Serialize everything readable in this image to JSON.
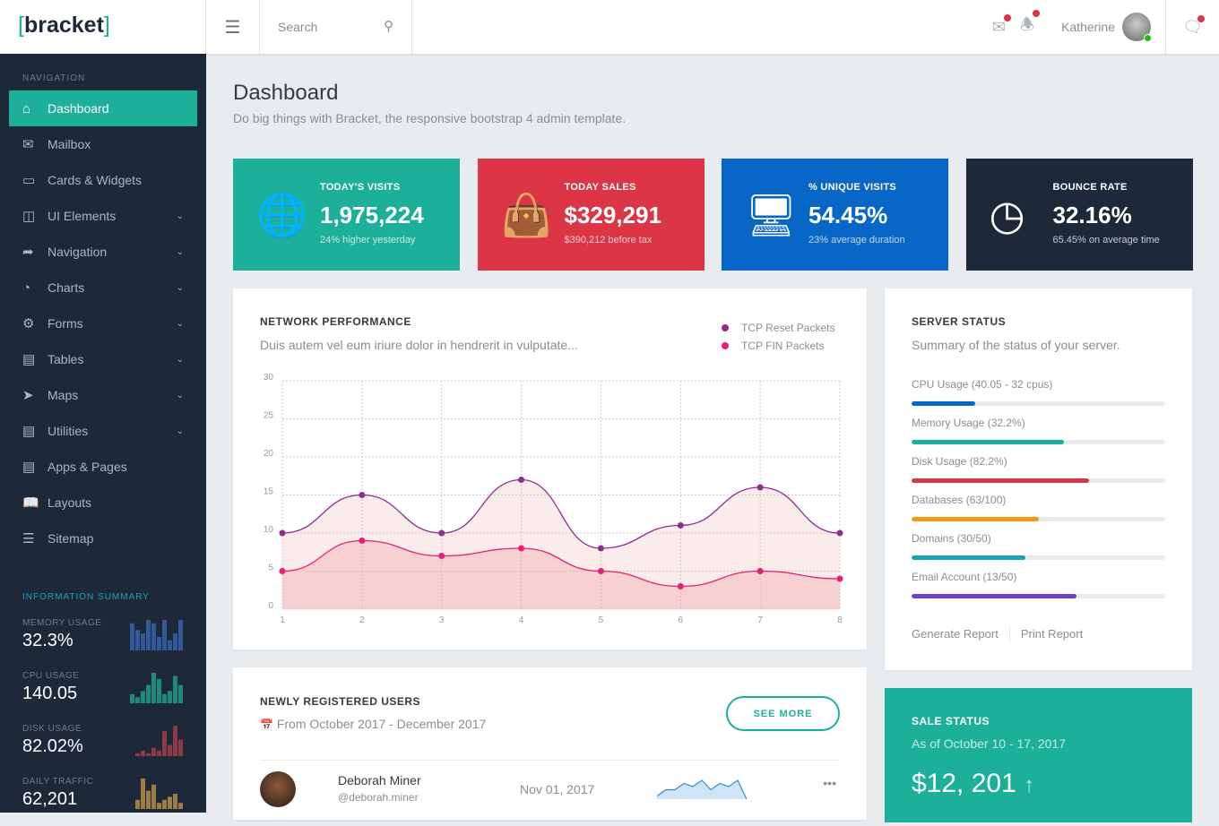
{
  "header": {
    "logo": "bracket",
    "search_placeholder": "Search",
    "user_name": "Katherine"
  },
  "sidebar": {
    "section_title": "NAVIGATION",
    "items": [
      {
        "label": "Dashboard",
        "icon": "home-icon"
      },
      {
        "label": "Mailbox",
        "icon": "mail-icon"
      },
      {
        "label": "Cards & Widgets",
        "icon": "cards-icon"
      },
      {
        "label": "UI Elements",
        "icon": "ui-icon",
        "chevron": true
      },
      {
        "label": "Navigation",
        "icon": "share-icon",
        "chevron": true
      },
      {
        "label": "Charts",
        "icon": "pie-chart-icon",
        "chevron": true
      },
      {
        "label": "Forms",
        "icon": "gear-icon",
        "chevron": true
      },
      {
        "label": "Tables",
        "icon": "table-icon",
        "chevron": true
      },
      {
        "label": "Maps",
        "icon": "compass-icon",
        "chevron": true
      },
      {
        "label": "Utilities",
        "icon": "briefcase-icon",
        "chevron": true
      },
      {
        "label": "Apps & Pages",
        "icon": "pages-icon"
      },
      {
        "label": "Layouts",
        "icon": "book-icon"
      },
      {
        "label": "Sitemap",
        "icon": "list-icon"
      }
    ],
    "info_title": "INFORMATION SUMMARY",
    "summary": [
      {
        "label": "MEMORY USAGE",
        "value": "32.3%",
        "color": "#325a98",
        "bars": [
          8,
          6,
          5,
          9,
          8,
          4,
          9,
          3,
          5,
          9
        ]
      },
      {
        "label": "CPU USAGE",
        "value": "140.05",
        "color": "#1f8a7a",
        "bars": [
          3,
          2,
          4,
          6,
          10,
          8,
          3,
          4,
          9,
          6
        ]
      },
      {
        "label": "DISK USAGE",
        "value": "82.02%",
        "color": "#8e3a44",
        "bars": [
          1,
          2,
          1,
          3,
          2,
          9,
          4,
          11,
          6
        ]
      },
      {
        "label": "DAILY TRAFFIC",
        "value": "62,201",
        "color": "#a07c45",
        "bars": [
          3,
          10,
          6,
          8,
          2,
          3,
          4,
          5,
          2
        ]
      }
    ]
  },
  "page": {
    "title": "Dashboard",
    "subtitle": "Do big things with Bracket, the responsive bootstrap 4 admin template."
  },
  "stats": [
    {
      "title": "TODAY'S VISITS",
      "value": "1,975,224",
      "sub": "24% higher yesterday",
      "color": "#1caf9a",
      "icon": "globe-icon"
    },
    {
      "title": "TODAY SALES",
      "value": "$329,291",
      "sub": "$390,212 before tax",
      "color": "#dc3545",
      "icon": "shopping-bag-icon"
    },
    {
      "title": "% UNIQUE VISITS",
      "value": "54.45%",
      "sub": "23% average duration",
      "color": "#0866c6",
      "icon": "monitor-icon"
    },
    {
      "title": "BOUNCE RATE",
      "value": "32.16%",
      "sub": "65.45% on average time",
      "color": "#1d2939",
      "icon": "clock-icon"
    }
  ],
  "network": {
    "title": "NETWORK PERFORMANCE",
    "subtitle": "Duis autem vel eum iriure dolor in hendrerit in vulputate..."
  },
  "chart_data": {
    "type": "area",
    "x": [
      1,
      2,
      3,
      4,
      5,
      6,
      7,
      8
    ],
    "ylim": [
      0,
      30
    ],
    "yticks": [
      0,
      5,
      10,
      15,
      20,
      25,
      30
    ],
    "grid": true,
    "legend": "top-right",
    "series": [
      {
        "name": "TCP Reset Packets",
        "color": "#8e2c91",
        "values": [
          10,
          15,
          10,
          17,
          8,
          11,
          16,
          10
        ]
      },
      {
        "name": "TCP FIN Packets",
        "color": "#e91e75",
        "values": [
          5,
          9,
          7,
          8,
          5,
          3,
          5,
          4
        ]
      }
    ]
  },
  "server": {
    "title": "SERVER STATUS",
    "subtitle": "Summary of the status of your server.",
    "items": [
      {
        "label": "CPU Usage (40.05 - 32 cpus)",
        "percent": 25,
        "color": "#0866c6"
      },
      {
        "label": "Memory Usage (32.2%)",
        "percent": 60,
        "color": "#1caf9a"
      },
      {
        "label": "Disk Usage (82.2%)",
        "percent": 70,
        "color": "#dc3545"
      },
      {
        "label": "Databases (63/100)",
        "percent": 50,
        "color": "#f49917"
      },
      {
        "label": "Domains (30/50)",
        "percent": 45,
        "color": "#17a2b8"
      },
      {
        "label": "Email Account (13/50)",
        "percent": 65,
        "color": "#6f42c1"
      }
    ],
    "generate": "Generate Report",
    "print": "Print Report"
  },
  "users": {
    "title": "NEWLY REGISTERED USERS",
    "range": "From October 2017 - December 2017",
    "see_more": "SEE MORE",
    "rows": [
      {
        "name": "Deborah Miner",
        "handle": "@deborah.miner",
        "date": "Nov 01, 2017",
        "spark": [
          1,
          3,
          3,
          5,
          4,
          6,
          3,
          5,
          4,
          6,
          0
        ]
      }
    ]
  },
  "sale": {
    "title": "SALE STATUS",
    "subtitle": "As of October 10 - 17, 2017",
    "value": "$12, 201"
  }
}
